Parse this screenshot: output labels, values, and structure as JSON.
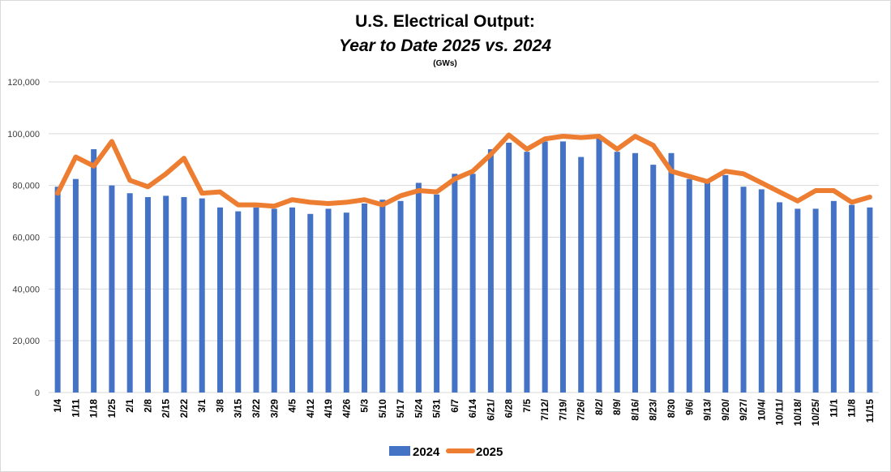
{
  "chart_data": {
    "type": "bar",
    "title": "U.S. Electrical Output:",
    "subtitle": "Year to Date 2025 vs. 2024",
    "unit_label": "(GWs)",
    "xlabel": "",
    "ylabel": "",
    "ylim": [
      0,
      120000
    ],
    "yticks": [
      0,
      20000,
      40000,
      60000,
      80000,
      100000,
      120000
    ],
    "ytick_labels": [
      "0",
      "20,000",
      "40,000",
      "60,000",
      "80,000",
      "100,000",
      "120,000"
    ],
    "grid": true,
    "legend_position": "bottom",
    "categories": [
      "1/4",
      "1/11",
      "1/18",
      "1/25",
      "2/1",
      "2/8",
      "2/15",
      "2/22",
      "3/1",
      "3/8",
      "3/15",
      "3/22",
      "3/29",
      "4/5",
      "4/12",
      "4/19",
      "4/26",
      "5/3",
      "5/10",
      "5/17",
      "5/24",
      "5/31",
      "6/7",
      "6/14",
      "6/21/",
      "6/28",
      "7/5",
      "7/12/",
      "7/19/",
      "7/26/",
      "8/2/",
      "8/9/",
      "8/16/",
      "8/23/",
      "8/30",
      "9/6/",
      "9/13/",
      "9/20/",
      "9/27/",
      "10/4/",
      "10/11/",
      "10/18/",
      "10/25/",
      "11/1",
      "11/8",
      "11/15"
    ],
    "series": [
      {
        "name": "2024",
        "kind": "bar",
        "color": "#4472C4",
        "values": [
          79500,
          82500,
          94000,
          80000,
          77000,
          75500,
          76000,
          75500,
          75000,
          71500,
          70000,
          71500,
          71000,
          71500,
          69000,
          71000,
          69500,
          73000,
          74500,
          74000,
          81000,
          76500,
          84500,
          84500,
          94000,
          96500,
          93000,
          97000,
          97000,
          91000,
          98500,
          93000,
          92500,
          88000,
          92500,
          82500,
          81000,
          84000,
          79500,
          78500,
          73500,
          71000,
          71000,
          74000,
          72500,
          71500
        ]
      },
      {
        "name": "2025",
        "kind": "line",
        "color": "#ED7D31",
        "values": [
          77000,
          91000,
          87500,
          97000,
          82000,
          79500,
          84500,
          90500,
          77000,
          77500,
          72500,
          72500,
          72000,
          74500,
          73500,
          73000,
          73500,
          74500,
          72500,
          76000,
          78000,
          77500,
          82500,
          85500,
          92000,
          99500,
          94000,
          98000,
          99000,
          98500,
          99000,
          94000,
          99000,
          95500,
          85500,
          83500,
          81500,
          85500,
          84500,
          81000,
          77500,
          74000,
          78000,
          78000,
          73500,
          75500
        ]
      }
    ]
  }
}
